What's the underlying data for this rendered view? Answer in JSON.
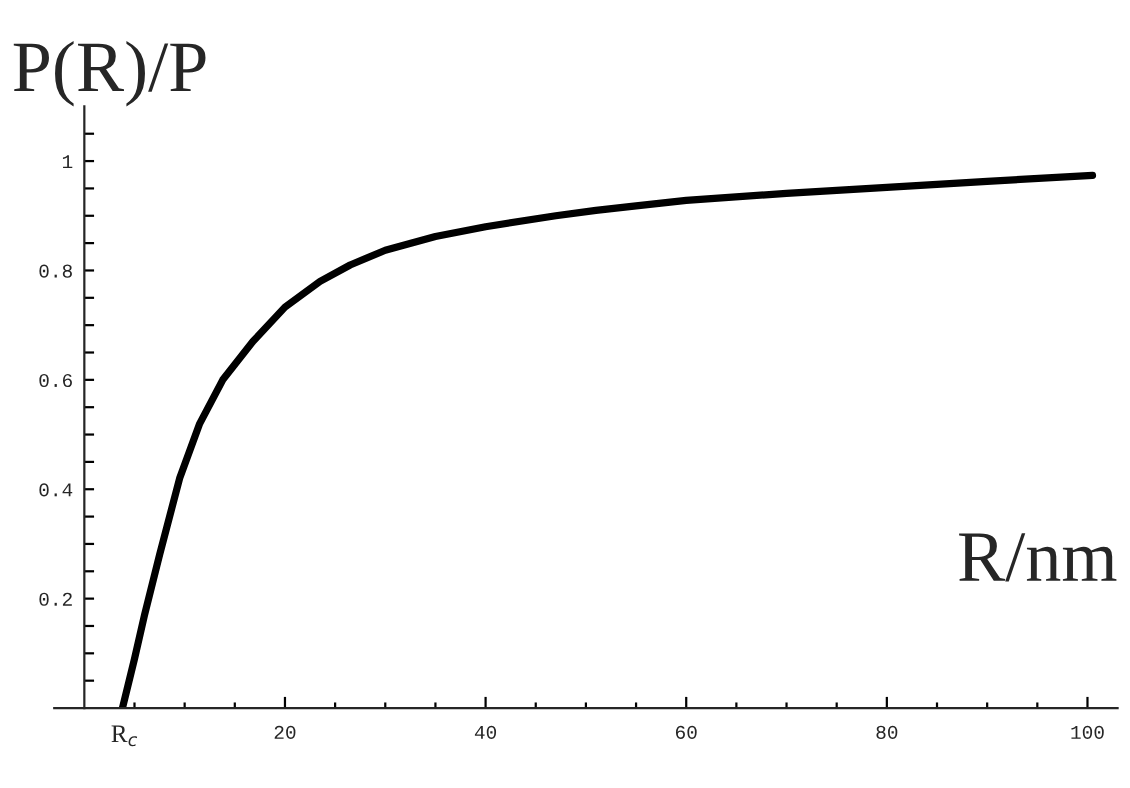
{
  "chart_data": {
    "type": "line",
    "xlabel": "R/nm",
    "ylabel": "P(R)/P",
    "x": [
      3.8,
      5,
      6,
      7.5,
      9.5,
      11.5,
      13.8,
      16.8,
      20,
      23.5,
      26.5,
      30,
      35,
      40,
      47,
      51,
      55,
      60,
      70,
      80,
      90,
      100.5
    ],
    "series": [
      {
        "color": "#000000",
        "values": [
          0,
          0.09,
          0.17,
          0.28,
          0.42,
          0.52,
          0.6,
          0.67,
          0.733,
          0.78,
          0.81,
          0.837,
          0.862,
          0.88,
          0.9,
          0.91,
          0.918,
          0.928,
          0.941,
          0.952,
          0.963,
          0.974
        ]
      }
    ],
    "xlim": [
      -3,
      103
    ],
    "ylim": [
      0,
      1.1
    ],
    "xticks": [
      {
        "value": 4,
        "label": "R$_{c}$"
      },
      {
        "value": 5,
        "label": null
      },
      {
        "value": 10,
        "label": null
      },
      {
        "value": 15,
        "label": null
      },
      20,
      {
        "value": 25,
        "label": null
      },
      {
        "value": 30,
        "label": null
      },
      {
        "value": 35,
        "label": null
      },
      40,
      {
        "value": 45,
        "label": null
      },
      {
        "value": 50,
        "label": null
      },
      {
        "value": 55,
        "label": null
      },
      60,
      {
        "value": 65,
        "label": null
      },
      {
        "value": 70,
        "label": null
      },
      {
        "value": 75,
        "label": null
      },
      80,
      {
        "value": 85,
        "label": null
      },
      {
        "value": 90,
        "label": null
      },
      {
        "value": 95,
        "label": null
      },
      100
    ],
    "yticks": [
      {
        "value": 0.05,
        "label": null
      },
      {
        "value": 0.1,
        "label": null
      },
      {
        "value": 0.15,
        "label": null
      },
      0.2,
      {
        "value": 0.25,
        "label": null
      },
      {
        "value": 0.3,
        "label": null
      },
      {
        "value": 0.35,
        "label": null
      },
      0.4,
      {
        "value": 0.45,
        "label": null
      },
      {
        "value": 0.5,
        "label": null
      },
      {
        "value": 0.55,
        "label": null
      },
      0.6,
      {
        "value": 0.65,
        "label": null
      },
      {
        "value": 0.7,
        "label": null
      },
      {
        "value": 0.75,
        "label": null
      },
      0.8,
      {
        "value": 0.85,
        "label": null
      },
      {
        "value": 0.9,
        "label": null
      },
      {
        "value": 0.95,
        "label": null
      },
      1,
      {
        "value": 1.05,
        "label": null
      }
    ],
    "grid": false,
    "legend": false,
    "marker": "none",
    "line_style": "solid"
  }
}
